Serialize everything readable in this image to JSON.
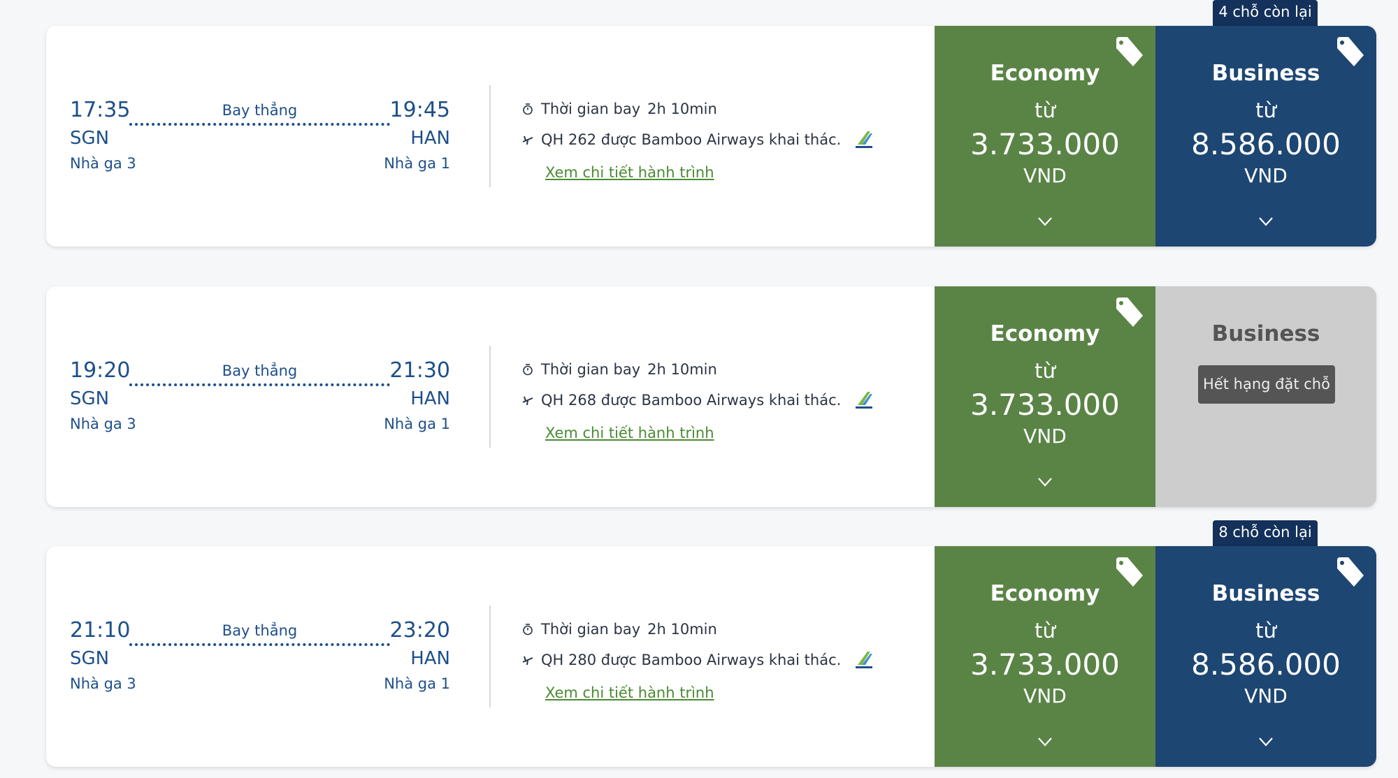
{
  "flights": [
    {
      "dep_time": "17:35",
      "arr_time": "19:45",
      "dep_code": "SGN",
      "arr_code": "HAN",
      "dep_terminal": "Nhà ga 3",
      "arr_terminal": "Nhà ga 1",
      "stops": "Bay thẳng",
      "duration_label": "Thời gian bay",
      "duration": "2h 10min",
      "operated": "QH 262 được Bamboo Airways khai thác.",
      "details_link": "Xem chi tiết hành trình",
      "economy": {
        "title": "Economy",
        "from": "từ",
        "price": "3.733.000",
        "currency": "VND"
      },
      "business": {
        "title": "Business",
        "from": "từ",
        "price": "8.586.000",
        "currency": "VND",
        "seats_left": "4 chỗ còn lại"
      }
    },
    {
      "dep_time": "19:20",
      "arr_time": "21:30",
      "dep_code": "SGN",
      "arr_code": "HAN",
      "dep_terminal": "Nhà ga 3",
      "arr_terminal": "Nhà ga 1",
      "stops": "Bay thẳng",
      "duration_label": "Thời gian bay",
      "duration": "2h 10min",
      "operated": "QH 268 được Bamboo Airways khai thác.",
      "details_link": "Xem chi tiết hành trình",
      "economy": {
        "title": "Economy",
        "from": "từ",
        "price": "3.733.000",
        "currency": "VND"
      },
      "business": {
        "title": "Business",
        "status": "Hết hạng đặt chỗ"
      }
    },
    {
      "dep_time": "21:10",
      "arr_time": "23:20",
      "dep_code": "SGN",
      "arr_code": "HAN",
      "dep_terminal": "Nhà ga 3",
      "arr_terminal": "Nhà ga 1",
      "stops": "Bay thẳng",
      "duration_label": "Thời gian bay",
      "duration": "2h 10min",
      "operated": "QH 280 được Bamboo Airways khai thác.",
      "details_link": "Xem chi tiết hành trình",
      "economy": {
        "title": "Economy",
        "from": "từ",
        "price": "3.733.000",
        "currency": "VND"
      },
      "business": {
        "title": "Business",
        "from": "từ",
        "price": "8.586.000",
        "currency": "VND",
        "seats_left": "8 chỗ còn lại"
      }
    }
  ],
  "colors": {
    "economy": "#5a8446",
    "business": "#1d4672",
    "sold_out": "#cdcdcd",
    "text_blue": "#1d4f8a",
    "link_green": "#4b8a32"
  }
}
